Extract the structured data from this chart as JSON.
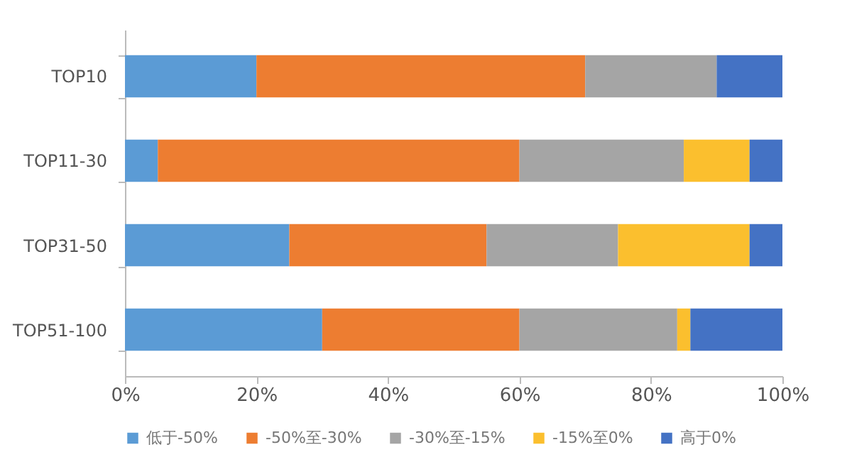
{
  "chart_data": {
    "type": "bar",
    "orientation": "horizontal",
    "stacked": true,
    "categories": [
      "TOP10",
      "TOP11-30",
      "TOP31-50",
      "TOP51-100"
    ],
    "series": [
      {
        "name": "低于-50%",
        "color": "#5b9bd5",
        "values": [
          20,
          5,
          25,
          30
        ]
      },
      {
        "name": "-50%至-30%",
        "color": "#ed7d31",
        "values": [
          50,
          55,
          30,
          30
        ]
      },
      {
        "name": "-30%至-15%",
        "color": "#a5a5a5",
        "values": [
          20,
          25,
          20,
          24
        ]
      },
      {
        "name": "-15%至0%",
        "color": "#fbbf2e",
        "values": [
          0,
          10,
          20,
          2
        ]
      },
      {
        "name": "高于0%",
        "color": "#4472c4",
        "values": [
          10,
          5,
          5,
          14
        ]
      }
    ],
    "xlim": [
      0,
      100
    ],
    "xticks": [
      {
        "value": 0,
        "label": "0%"
      },
      {
        "value": 20,
        "label": "20%"
      },
      {
        "value": 40,
        "label": "40%"
      },
      {
        "value": 60,
        "label": "60%"
      },
      {
        "value": 80,
        "label": "80%"
      },
      {
        "value": 100,
        "label": "100%"
      }
    ],
    "legend": "bottom"
  }
}
